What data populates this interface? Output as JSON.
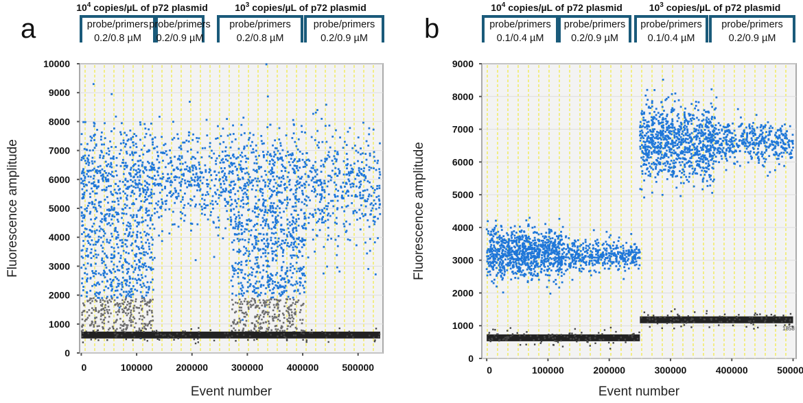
{
  "colors": {
    "positive": "#1f77d8",
    "negative": "#222222",
    "bracket": "#1a5a7a",
    "grid": "#f2ec6a",
    "plot_bg": "#f3f3f3"
  },
  "chart_data": [
    {
      "type": "scatter",
      "panel_label": "a",
      "xlabel": "Event number",
      "ylabel": "Fluorescence amplitude",
      "xlim": [
        -3000,
        545000
      ],
      "ylim": [
        0,
        10000
      ],
      "xticks": [
        0,
        100000,
        200000,
        300000,
        400000,
        500000
      ],
      "xtick_labels": [
        "0",
        "100000",
        "200000",
        "300000",
        "400000",
        "500000"
      ],
      "yticks": [
        0,
        1000,
        2000,
        3000,
        4000,
        5000,
        6000,
        7000,
        8000,
        9000,
        10000
      ],
      "ytick_labels": [
        "0",
        "1000",
        "2000",
        "3000",
        "4000",
        "5000",
        "6000",
        "7000",
        "8000",
        "9000",
        "10000"
      ],
      "groups": [
        {
          "label_pre": "10",
          "label_sup": "4",
          "label_post": "copies/µL of p72 plasmid",
          "subgroups": [
            {
              "line1": "probe/primers",
              "line2": "0.2/0.8 µM"
            },
            {
              "line1": "probe/primers",
              "line2": "0.2/0.9 µM"
            }
          ]
        },
        {
          "label_pre": "10",
          "label_sup": "3",
          "label_post": "copies/µL of p72 plasmid",
          "subgroups": [
            {
              "line1": "probe/primers",
              "line2": "0.2/0.8 µM"
            },
            {
              "line1": "probe/primers",
              "line2": "0.2/0.9 µM"
            }
          ]
        }
      ],
      "series": [
        {
          "name": "positive droplets",
          "segments": [
            {
              "x_range": [
                0,
                130000
              ],
              "y_center": 5200,
              "y_spread": 3000,
              "y_min": 1900,
              "y_max": 8400,
              "density": "high"
            },
            {
              "x_range": [
                130000,
                270000
              ],
              "y_center": 6000,
              "y_spread": 800,
              "y_min": 1500,
              "y_max": 8300,
              "density": "medium"
            },
            {
              "x_range": [
                270000,
                405000
              ],
              "y_center": 5200,
              "y_spread": 3000,
              "y_min": 1900,
              "y_max": 8400,
              "density": "high"
            },
            {
              "x_range": [
                405000,
                540000
              ],
              "y_center": 5700,
              "y_spread": 900,
              "y_min": 1500,
              "y_max": 8300,
              "density": "medium"
            }
          ]
        },
        {
          "name": "rain",
          "segments": [
            {
              "x_range": [
                0,
                130000
              ],
              "y_min": 700,
              "y_max": 1900
            },
            {
              "x_range": [
                270000,
                405000
              ],
              "y_min": 700,
              "y_max": 1900
            }
          ]
        },
        {
          "name": "negative droplets",
          "segments": [
            {
              "x_range": [
                0,
                540000
              ],
              "y_center": 620
            }
          ]
        }
      ]
    },
    {
      "type": "scatter",
      "panel_label": "b",
      "xlabel": "Event number",
      "ylabel": "Fluorescence amplitude",
      "xlim": [
        -8000,
        505000
      ],
      "ylim": [
        0,
        9000
      ],
      "xticks": [
        0,
        100000,
        200000,
        300000,
        400000,
        500000
      ],
      "xtick_labels": [
        "0",
        "100000",
        "200000",
        "300000",
        "400000",
        "500000"
      ],
      "yticks": [
        0,
        1000,
        2000,
        3000,
        4000,
        5000,
        6000,
        7000,
        8000,
        9000
      ],
      "ytick_labels": [
        "0",
        "1000",
        "2000",
        "3000",
        "4000",
        "5000",
        "6000",
        "7000",
        "8000",
        "9000"
      ],
      "annotation": "1858",
      "groups": [
        {
          "label_pre": "10",
          "label_sup": "4",
          "label_post": "copies/µL of p72 plasmid",
          "subgroups": [
            {
              "line1": "probe/primers",
              "line2": "0.1/0.4 µM"
            },
            {
              "line1": "probe/primers",
              "line2": "0.2/0.9 µM"
            }
          ]
        },
        {
          "label_pre": "10",
          "label_sup": "3",
          "label_post": "copies/µL of p72 plasmid",
          "subgroups": [
            {
              "line1": "probe/primers",
              "line2": "0.1/0.4 µM"
            },
            {
              "line1": "probe/primers",
              "line2": "0.2/0.9 µM"
            }
          ]
        }
      ],
      "series": [
        {
          "name": "positive droplets",
          "segments": [
            {
              "x_range": [
                0,
                125000
              ],
              "y_center": 3200,
              "y_spread": 350,
              "density": "high"
            },
            {
              "x_range": [
                125000,
                250000
              ],
              "y_center": 3150,
              "y_spread": 220,
              "density": "medium"
            },
            {
              "x_range": [
                250000,
                375000
              ],
              "y_center": 6600,
              "y_spread": 550,
              "density": "high"
            },
            {
              "x_range": [
                375000,
                500000
              ],
              "y_center": 6600,
              "y_spread": 300,
              "density": "medium"
            }
          ]
        },
        {
          "name": "negative droplets",
          "segments": [
            {
              "x_range": [
                0,
                250000
              ],
              "y_center": 630
            },
            {
              "x_range": [
                250000,
                500000
              ],
              "y_center": 1180
            }
          ]
        }
      ]
    }
  ]
}
